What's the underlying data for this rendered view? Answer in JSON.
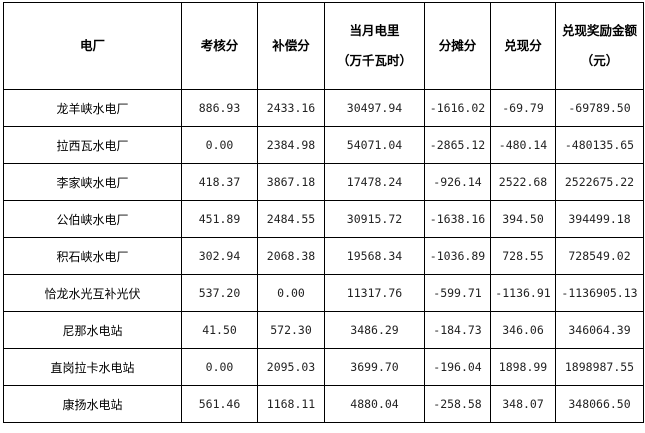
{
  "table": {
    "headers": [
      [
        "电厂"
      ],
      [
        "考核分"
      ],
      [
        "补偿分"
      ],
      [
        "当月电里",
        "（万千瓦时）"
      ],
      [
        "分摊分"
      ],
      [
        "兑现分"
      ],
      [
        "兑现奖励金额",
        "（元）"
      ]
    ],
    "rows": [
      [
        "龙羊峡水电厂",
        "886.93",
        "2433.16",
        "30497.94",
        "-1616.02",
        "-69.79",
        "-69789.50"
      ],
      [
        "拉西瓦水电厂",
        "0.00",
        "2384.98",
        "54071.04",
        "-2865.12",
        "-480.14",
        "-480135.65"
      ],
      [
        "李家峡水电厂",
        "418.37",
        "3867.18",
        "17478.24",
        "-926.14",
        "2522.68",
        "2522675.22"
      ],
      [
        "公伯峡水电厂",
        "451.89",
        "2484.55",
        "30915.72",
        "-1638.16",
        "394.50",
        "394499.18"
      ],
      [
        "积石峡水电厂",
        "302.94",
        "2068.38",
        "19568.34",
        "-1036.89",
        "728.55",
        "728549.02"
      ],
      [
        "恰龙水光互补光伏",
        "537.20",
        "0.00",
        "11317.76",
        "-599.71",
        "-1136.91",
        "-1136905.13"
      ],
      [
        "尼那水电站",
        "41.50",
        "572.30",
        "3486.29",
        "-184.73",
        "346.06",
        "346064.39"
      ],
      [
        "直岗拉卡水电站",
        "0.00",
        "2095.03",
        "3699.70",
        "-196.04",
        "1898.99",
        "1898987.55"
      ],
      [
        "康扬水电站",
        "561.46",
        "1168.11",
        "4880.04",
        "-258.58",
        "348.07",
        "348066.50"
      ]
    ]
  }
}
